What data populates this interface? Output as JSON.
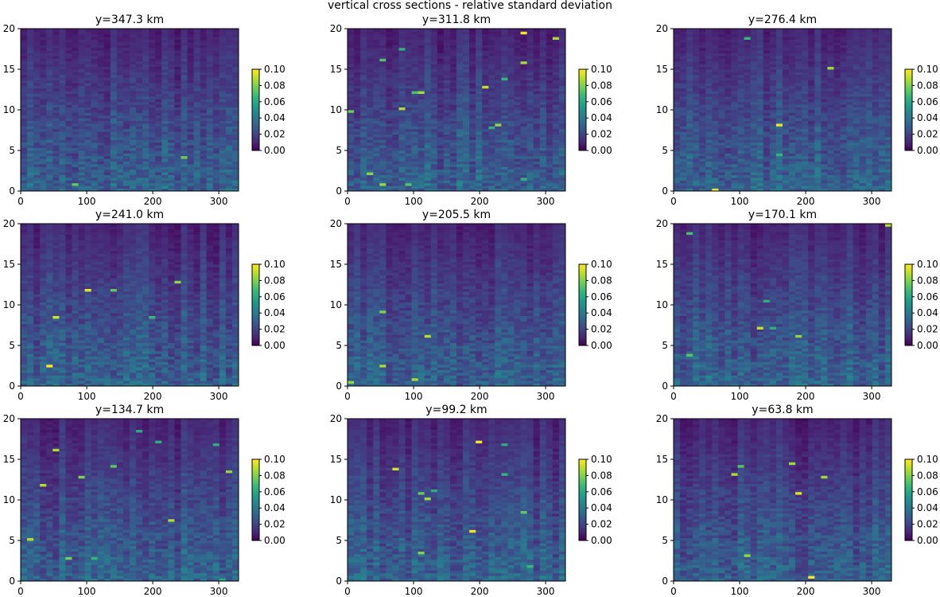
{
  "figure": {
    "suptitle": "vertical cross sections - relative standard deviation"
  },
  "chart_data": {
    "type": "heatmap",
    "layout": "3x3 grid of panels",
    "x_range": [
      0,
      330
    ],
    "y_range": [
      0,
      20
    ],
    "x_ticks": [
      0,
      100,
      200,
      300
    ],
    "y_ticks": [
      0,
      5,
      10,
      15,
      20
    ],
    "colorbar": {
      "colormap": "viridis",
      "range": [
        0.0,
        0.1
      ],
      "ticks": [
        "0.00",
        "0.02",
        "0.04",
        "0.06",
        "0.08",
        "0.10"
      ]
    },
    "panels": [
      {
        "title": "y=347.3 km"
      },
      {
        "title": "y=311.8 km"
      },
      {
        "title": "y=276.4 km"
      },
      {
        "title": "y=241.0 km"
      },
      {
        "title": "y=205.5 km"
      },
      {
        "title": "y=170.1 km"
      },
      {
        "title": "y=134.7 km"
      },
      {
        "title": "y=99.2 km"
      },
      {
        "title": "y=63.8 km"
      }
    ]
  }
}
